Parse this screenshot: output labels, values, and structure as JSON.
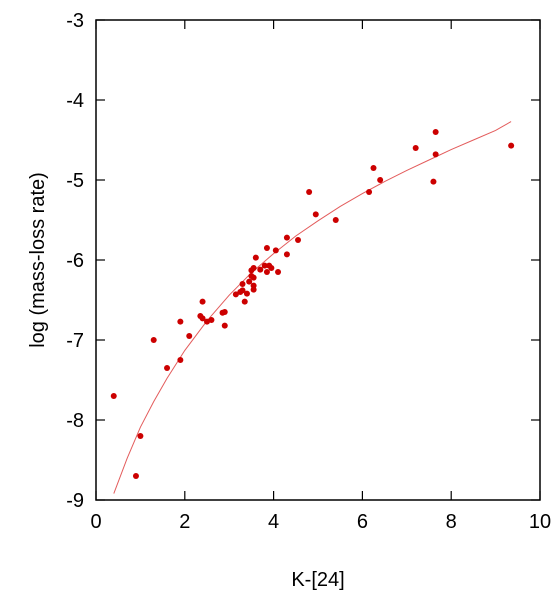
{
  "chart_data": {
    "type": "scatter",
    "title": "",
    "xlabel": "K-[24]",
    "ylabel": "log (mass-loss rate)",
    "xlim": [
      0,
      10
    ],
    "ylim": [
      -9,
      -3
    ],
    "x_ticks": [
      0,
      2,
      4,
      6,
      8,
      10
    ],
    "y_ticks": [
      -9,
      -8,
      -7,
      -6,
      -5,
      -4,
      -3
    ],
    "grid": false,
    "legend": "none",
    "point_color": "#cc0000",
    "fit_color": "#e35c5c",
    "series": [
      {
        "points": [
          [
            0.4,
            -7.7
          ],
          [
            0.9,
            -8.7
          ],
          [
            1.0,
            -8.2
          ],
          [
            1.3,
            -7.0
          ],
          [
            1.6,
            -7.35
          ],
          [
            1.9,
            -6.77
          ],
          [
            1.9,
            -7.25
          ],
          [
            2.1,
            -6.95
          ],
          [
            2.35,
            -6.7
          ],
          [
            2.4,
            -6.52
          ],
          [
            2.4,
            -6.73
          ],
          [
            2.5,
            -6.77
          ],
          [
            2.6,
            -6.75
          ],
          [
            2.85,
            -6.66
          ],
          [
            2.9,
            -6.65
          ],
          [
            2.9,
            -6.82
          ],
          [
            3.15,
            -6.43
          ],
          [
            3.25,
            -6.4
          ],
          [
            3.3,
            -6.3
          ],
          [
            3.3,
            -6.38
          ],
          [
            3.35,
            -6.52
          ],
          [
            3.4,
            -6.42
          ],
          [
            3.45,
            -6.27
          ],
          [
            3.5,
            -6.2
          ],
          [
            3.5,
            -6.13
          ],
          [
            3.55,
            -6.32
          ],
          [
            3.55,
            -6.37
          ],
          [
            3.55,
            -6.22
          ],
          [
            3.55,
            -6.1
          ],
          [
            3.6,
            -5.97
          ],
          [
            3.7,
            -6.12
          ],
          [
            3.8,
            -6.07
          ],
          [
            3.85,
            -5.85
          ],
          [
            3.85,
            -6.15
          ],
          [
            3.9,
            -6.07
          ],
          [
            3.95,
            -6.1
          ],
          [
            4.05,
            -5.88
          ],
          [
            4.1,
            -6.15
          ],
          [
            4.3,
            -5.93
          ],
          [
            4.3,
            -5.72
          ],
          [
            4.55,
            -5.75
          ],
          [
            4.8,
            -5.15
          ],
          [
            4.95,
            -5.43
          ],
          [
            5.4,
            -5.5
          ],
          [
            6.15,
            -5.15
          ],
          [
            6.25,
            -4.85
          ],
          [
            6.4,
            -5.0
          ],
          [
            7.2,
            -4.6
          ],
          [
            7.6,
            -5.02
          ],
          [
            7.65,
            -4.4
          ],
          [
            7.65,
            -4.68
          ],
          [
            9.35,
            -4.57
          ]
        ]
      }
    ],
    "fit_curve": {
      "x": [
        0.4,
        0.7,
        1.0,
        1.3,
        1.6,
        2.0,
        2.5,
        3.0,
        3.5,
        4.0,
        4.5,
        5.0,
        5.5,
        6.0,
        6.5,
        7.0,
        7.5,
        8.0,
        8.5,
        9.0,
        9.35
      ],
      "y": [
        -8.92,
        -8.48,
        -8.09,
        -7.77,
        -7.48,
        -7.13,
        -6.76,
        -6.44,
        -6.16,
        -5.92,
        -5.7,
        -5.51,
        -5.33,
        -5.17,
        -5.02,
        -4.88,
        -4.75,
        -4.62,
        -4.5,
        -4.38,
        -4.27
      ]
    }
  }
}
